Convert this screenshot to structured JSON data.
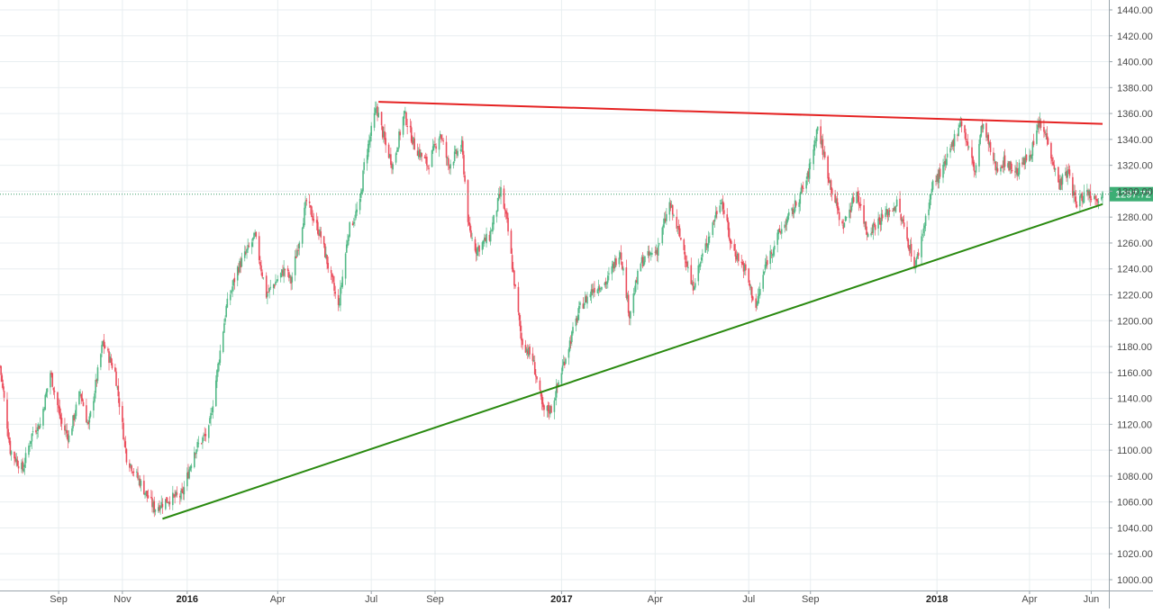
{
  "chart_data": {
    "type": "candlestick",
    "y_range": [
      990,
      1450
    ],
    "x_range": [
      "2015-07-06",
      "2018-06-12"
    ],
    "y_ticks": [
      1000,
      1020,
      1040,
      1060,
      1080,
      1100,
      1120,
      1140,
      1160,
      1180,
      1200,
      1220,
      1240,
      1260,
      1280,
      1300,
      1320,
      1340,
      1360,
      1380,
      1400,
      1420,
      1440
    ],
    "y_tick_labels": [
      "1000.00",
      "1020.00",
      "1040.00",
      "1060.00",
      "1080.00",
      "1100.00",
      "1120.00",
      "1140.00",
      "1160.00",
      "1180.00",
      "1200.00",
      "1220.00",
      "1240.00",
      "1260.00",
      "1280.00",
      "1300.00",
      "1320.00",
      "1340.00",
      "1360.00",
      "1380.00",
      "1400.00",
      "1420.00",
      "1440.00"
    ],
    "x_ticks": [
      {
        "label": "Sep",
        "date": "2015-09-01",
        "bold": false
      },
      {
        "label": "Nov",
        "date": "2015-11-02",
        "bold": false
      },
      {
        "label": "2016",
        "date": "2016-01-04",
        "bold": true
      },
      {
        "label": "Apr",
        "date": "2016-04-01",
        "bold": false
      },
      {
        "label": "Jul",
        "date": "2016-07-01",
        "bold": false
      },
      {
        "label": "Sep",
        "date": "2016-09-01",
        "bold": false
      },
      {
        "label": "2017",
        "date": "2017-01-02",
        "bold": true
      },
      {
        "label": "Apr",
        "date": "2017-04-03",
        "bold": false
      },
      {
        "label": "Jul",
        "date": "2017-07-03",
        "bold": false
      },
      {
        "label": "Sep",
        "date": "2017-09-01",
        "bold": false
      },
      {
        "label": "2018",
        "date": "2018-01-02",
        "bold": true
      },
      {
        "label": "Apr",
        "date": "2018-04-02",
        "bold": false
      },
      {
        "label": "Jun",
        "date": "2018-06-01",
        "bold": false
      }
    ],
    "close_path": [
      [
        "2015-07-06",
        1165
      ],
      [
        "2015-07-16",
        1100
      ],
      [
        "2015-07-28",
        1085
      ],
      [
        "2015-08-07",
        1115
      ],
      [
        "2015-08-14",
        1120
      ],
      [
        "2015-08-24",
        1160
      ],
      [
        "2015-09-04",
        1120
      ],
      [
        "2015-09-11",
        1110
      ],
      [
        "2015-09-22",
        1145
      ],
      [
        "2015-09-30",
        1118
      ],
      [
        "2015-10-14",
        1183
      ],
      [
        "2015-10-26",
        1160
      ],
      [
        "2015-11-06",
        1095
      ],
      [
        "2015-11-24",
        1068
      ],
      [
        "2015-12-03",
        1055
      ],
      [
        "2015-12-16",
        1062
      ],
      [
        "2015-12-30",
        1065
      ],
      [
        "2016-01-11",
        1100
      ],
      [
        "2016-01-25",
        1115
      ],
      [
        "2016-02-11",
        1210
      ],
      [
        "2016-02-22",
        1240
      ],
      [
        "2016-03-10",
        1265
      ],
      [
        "2016-03-21",
        1220
      ],
      [
        "2016-04-08",
        1240
      ],
      [
        "2016-04-14",
        1230
      ],
      [
        "2016-04-29",
        1292
      ],
      [
        "2016-05-13",
        1265
      ],
      [
        "2016-05-30",
        1210
      ],
      [
        "2016-06-09",
        1270
      ],
      [
        "2016-06-20",
        1290
      ],
      [
        "2016-06-24",
        1320
      ],
      [
        "2016-07-06",
        1365
      ],
      [
        "2016-07-15",
        1335
      ],
      [
        "2016-07-22",
        1320
      ],
      [
        "2016-08-02",
        1360
      ],
      [
        "2016-08-12",
        1335
      ],
      [
        "2016-08-25",
        1320
      ],
      [
        "2016-09-06",
        1345
      ],
      [
        "2016-09-14",
        1320
      ],
      [
        "2016-09-27",
        1335
      ],
      [
        "2016-10-04",
        1270
      ],
      [
        "2016-10-11",
        1255
      ],
      [
        "2016-10-24",
        1265
      ],
      [
        "2016-11-04",
        1300
      ],
      [
        "2016-11-10",
        1275
      ],
      [
        "2016-11-24",
        1185
      ],
      [
        "2016-12-05",
        1170
      ],
      [
        "2016-12-15",
        1130
      ],
      [
        "2016-12-23",
        1132
      ],
      [
        "2017-01-05",
        1170
      ],
      [
        "2017-01-20",
        1210
      ],
      [
        "2017-02-02",
        1225
      ],
      [
        "2017-02-15",
        1230
      ],
      [
        "2017-02-28",
        1255
      ],
      [
        "2017-03-09",
        1205
      ],
      [
        "2017-03-20",
        1245
      ],
      [
        "2017-04-05",
        1255
      ],
      [
        "2017-04-17",
        1290
      ],
      [
        "2017-05-01",
        1255
      ],
      [
        "2017-05-09",
        1225
      ],
      [
        "2017-05-23",
        1260
      ],
      [
        "2017-06-06",
        1295
      ],
      [
        "2017-06-16",
        1258
      ],
      [
        "2017-06-29",
        1240
      ],
      [
        "2017-07-10",
        1210
      ],
      [
        "2017-07-20",
        1245
      ],
      [
        "2017-08-02",
        1268
      ],
      [
        "2017-08-15",
        1285
      ],
      [
        "2017-08-29",
        1310
      ],
      [
        "2017-09-08",
        1350
      ],
      [
        "2017-09-19",
        1310
      ],
      [
        "2017-10-02",
        1272
      ],
      [
        "2017-10-16",
        1300
      ],
      [
        "2017-10-26",
        1268
      ],
      [
        "2017-11-10",
        1280
      ],
      [
        "2017-11-24",
        1290
      ],
      [
        "2017-12-12",
        1242
      ],
      [
        "2017-12-29",
        1305
      ],
      [
        "2018-01-10",
        1320
      ],
      [
        "2018-01-25",
        1355
      ],
      [
        "2018-02-08",
        1315
      ],
      [
        "2018-02-15",
        1352
      ],
      [
        "2018-02-28",
        1318
      ],
      [
        "2018-03-09",
        1323
      ],
      [
        "2018-03-20",
        1315
      ],
      [
        "2018-03-30",
        1325
      ],
      [
        "2018-04-06",
        1335
      ],
      [
        "2018-04-11",
        1352
      ],
      [
        "2018-04-20",
        1340
      ],
      [
        "2018-04-30",
        1305
      ],
      [
        "2018-05-10",
        1315
      ],
      [
        "2018-05-17",
        1290
      ],
      [
        "2018-05-28",
        1300
      ],
      [
        "2018-06-04",
        1295
      ],
      [
        "2018-06-12",
        1297.72
      ]
    ],
    "trendlines": [
      {
        "name": "resistance",
        "color": "#e52222",
        "from": [
          "2016-07-08",
          1369
        ],
        "to": [
          "2018-06-12",
          1352
        ]
      },
      {
        "name": "support",
        "color": "#2a8a10",
        "from": [
          "2015-12-11",
          1047
        ],
        "to": [
          "2018-06-12",
          1290
        ]
      }
    ],
    "last_price": 1297.72,
    "last_price_label": "1297.72",
    "colors": {
      "up": "#53b987",
      "down": "#eb4d5c",
      "last_price_line": "#3c9e6a",
      "last_price_tag": "#3cae74",
      "grid": "#e8eef0"
    },
    "grid": true
  }
}
